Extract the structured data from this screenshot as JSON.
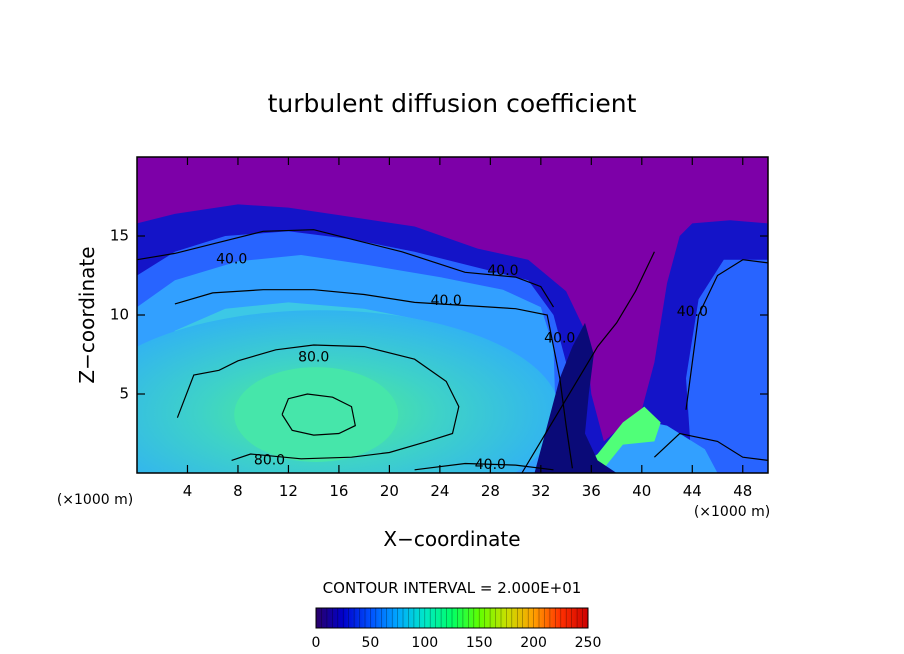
{
  "chart_data": {
    "type": "heatmap",
    "title": "turbulent diffusion coefficient",
    "xlabel": "X−coordinate",
    "ylabel": "Z−coordinate",
    "x_unit_left": "(×1000 m)",
    "x_unit_right": "(×1000 m)",
    "xlim": [
      0,
      50
    ],
    "ylim": [
      0,
      20
    ],
    "xticks": [
      4,
      8,
      12,
      16,
      20,
      24,
      28,
      32,
      36,
      40,
      44,
      48
    ],
    "yticks": [
      5,
      10,
      15
    ],
    "contour_interval_text": "CONTOUR INTERVAL = 2.000E+01",
    "contour_labels": [
      {
        "text": "40.0",
        "x": 7.5,
        "z": 13.5
      },
      {
        "text": "40.0",
        "x": 29.0,
        "z": 12.8
      },
      {
        "text": "40.0",
        "x": 24.5,
        "z": 10.9
      },
      {
        "text": "40.0",
        "x": 33.5,
        "z": 8.5
      },
      {
        "text": "40.0",
        "x": 44.0,
        "z": 10.2
      },
      {
        "text": "80.0",
        "x": 14.0,
        "z": 7.3
      },
      {
        "text": "80.0",
        "x": 10.5,
        "z": 0.8
      },
      {
        "text": "40.0",
        "x": 28.0,
        "z": 0.5
      }
    ],
    "colorbar": {
      "range": [
        0,
        250
      ],
      "ticks": [
        0,
        50,
        100,
        150,
        200,
        250
      ],
      "colors": [
        "#2a0068",
        "#0000cc",
        "#0050ff",
        "#00a8ff",
        "#00e8c8",
        "#00ff66",
        "#60ff00",
        "#c8e000",
        "#ffa000",
        "#ff3000",
        "#cc0000"
      ]
    },
    "field_colors": {
      "background": "#7d00a8",
      "low": "#1414c8",
      "mid": "#2864ff",
      "mid_high": "#32a0ff",
      "high": "#3cc8e6",
      "peak": "#46e6aa",
      "max": "#50ff78"
    }
  }
}
